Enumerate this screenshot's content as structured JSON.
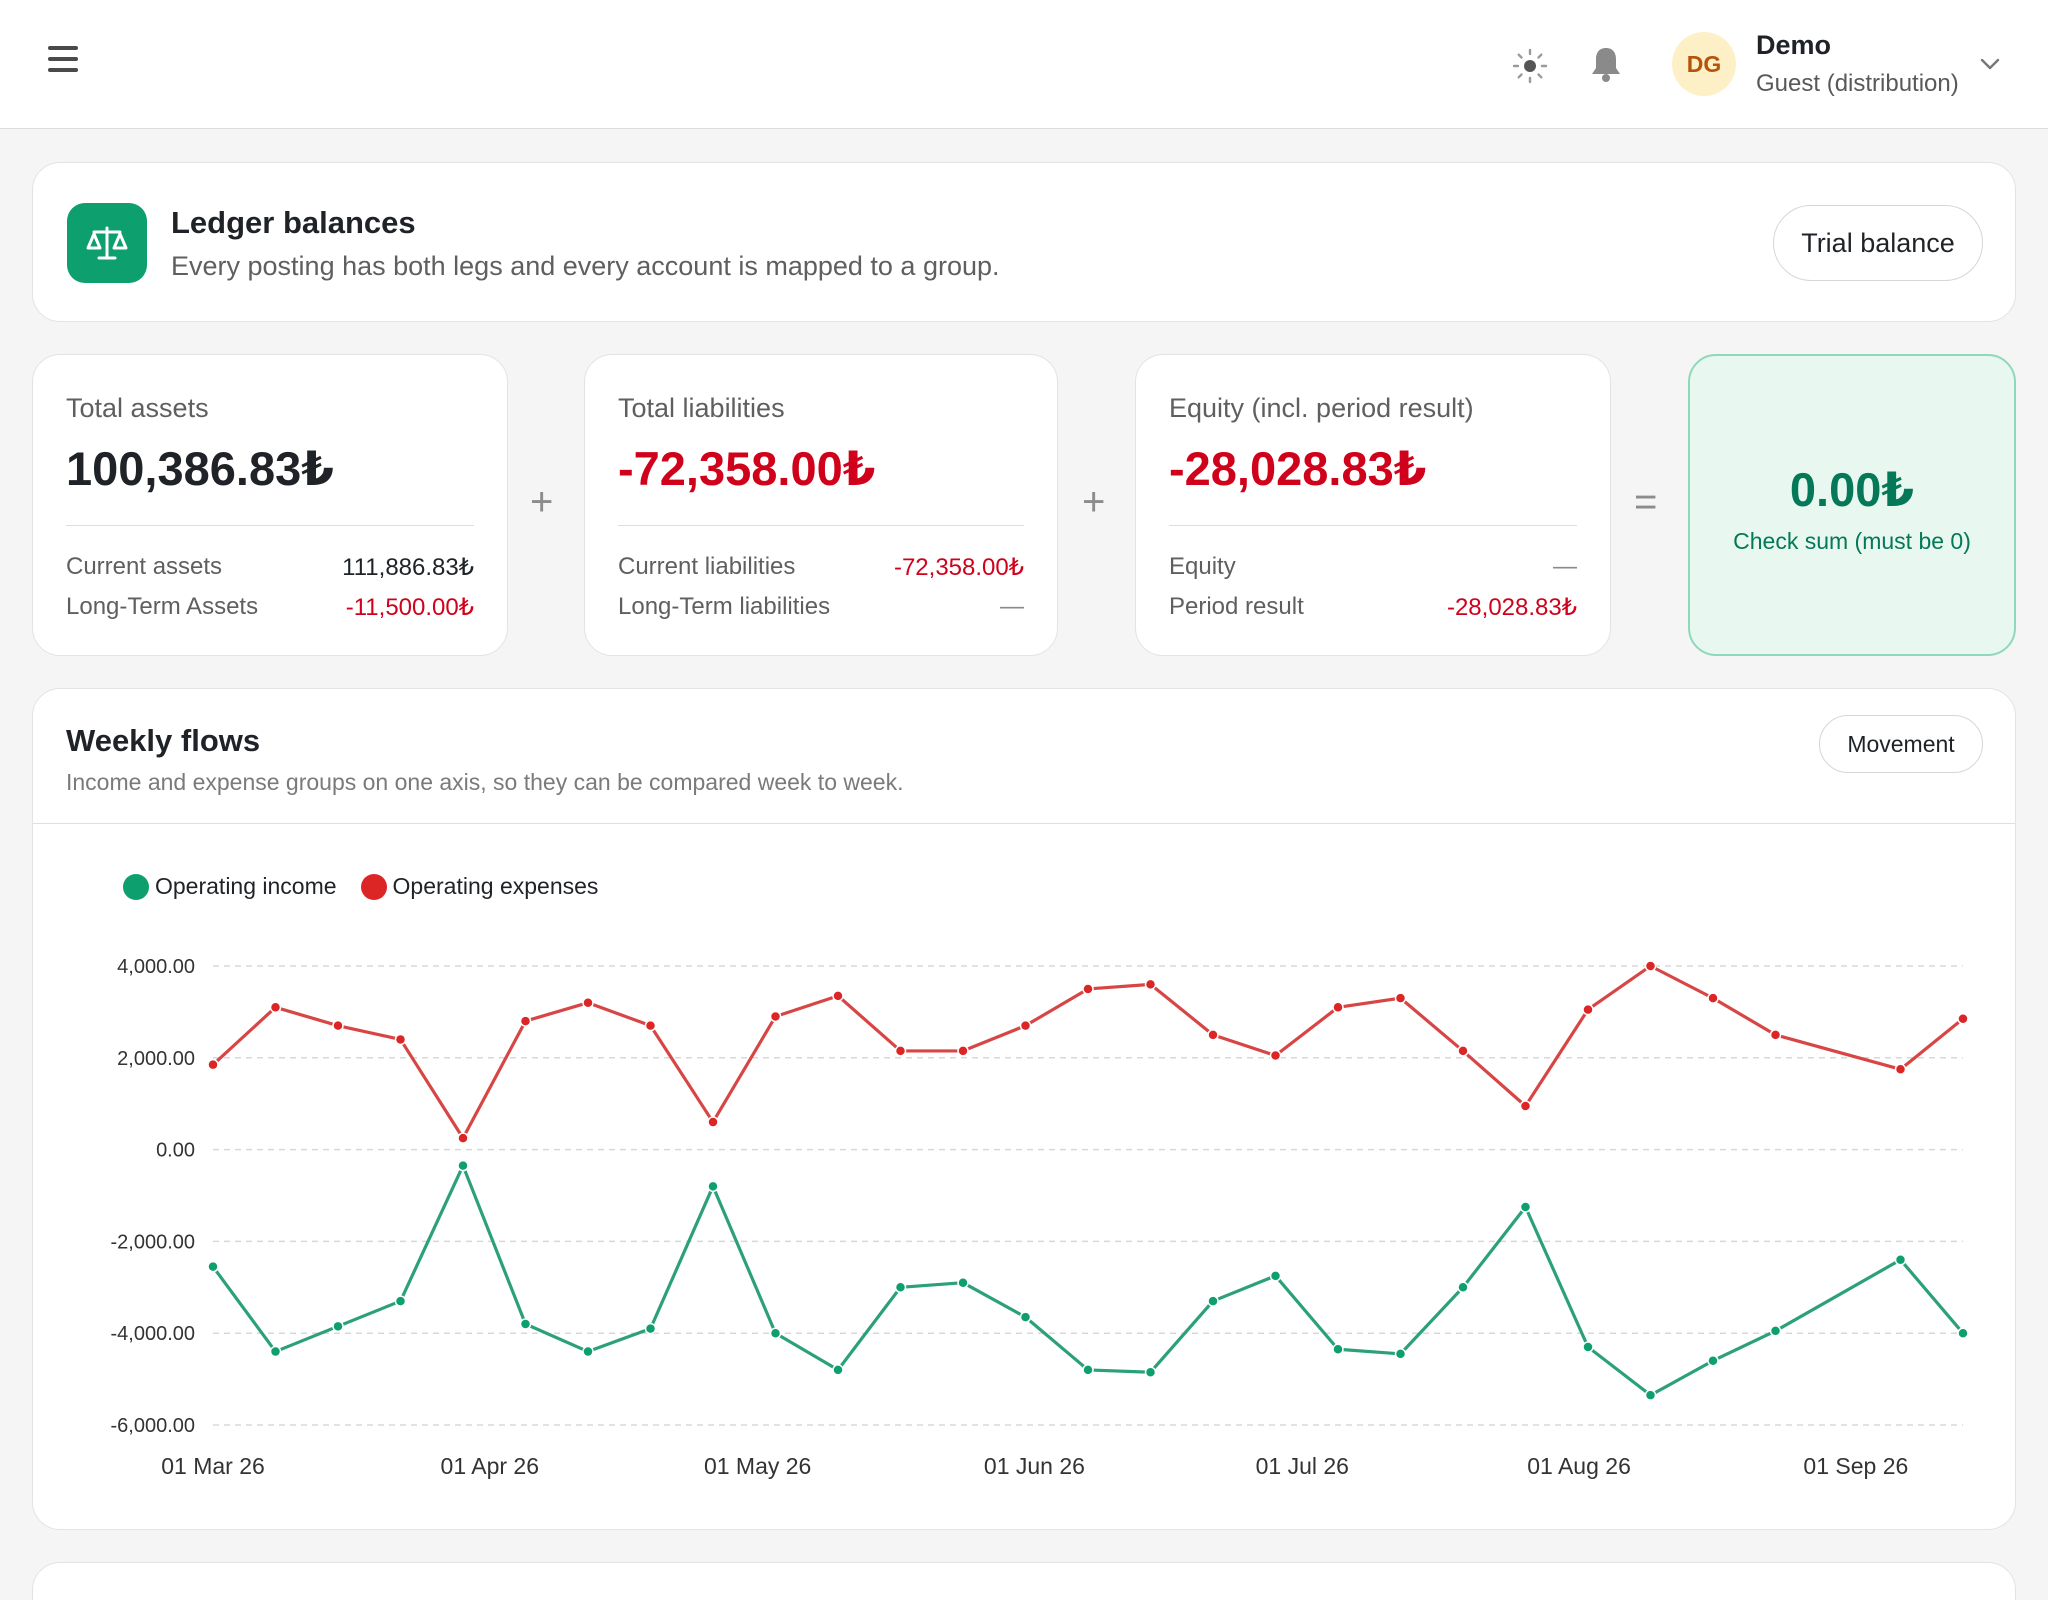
{
  "topbar": {
    "user": {
      "initials": "DG",
      "name": "Demo",
      "role": "Guest (distribution)"
    }
  },
  "header": {
    "title": "Ledger balances",
    "subtitle": "Every posting has both legs and every account is mapped to a group.",
    "trial_balance_label": "Trial balance"
  },
  "stats": {
    "assets": {
      "label": "Total assets",
      "value": "100,386.83₺",
      "rows": [
        {
          "label": "Current assets",
          "value": "111,886.83₺"
        },
        {
          "label": "Long-Term Assets",
          "value": "-11,500.00₺"
        }
      ]
    },
    "liabilities": {
      "label": "Total liabilities",
      "value": "-72,358.00₺",
      "rows": [
        {
          "label": "Current liabilities",
          "value": "-72,358.00₺"
        },
        {
          "label": "Long-Term liabilities",
          "value": "—"
        }
      ]
    },
    "equity": {
      "label": "Equity (incl. period result)",
      "value": "-28,028.83₺",
      "rows": [
        {
          "label": "Equity",
          "value": "—"
        },
        {
          "label": "Period result",
          "value": "-28,028.83₺"
        }
      ]
    },
    "operators": {
      "plus1": "+",
      "plus2": "+",
      "equals": "="
    },
    "check": {
      "value": "0.00₺",
      "label": "Check sum (must be 0)"
    }
  },
  "flows": {
    "title": "Weekly flows",
    "subtitle": "Income and expense groups on one axis, so they can be compared week to week.",
    "movement_label": "Movement"
  },
  "colors": {
    "income": "#0e9f6e",
    "expenses": "#dc2626",
    "income_line": "#2ba07a",
    "expenses_line": "#d84545"
  },
  "chart_data": {
    "type": "line",
    "x_ticks": [
      "01 Mar 26",
      "01 Apr 26",
      "01 May 26",
      "01 Jun 26",
      "01 Jul 26",
      "01 Aug 26",
      "01 Sep 26"
    ],
    "y_ticks": [
      "4,000.00",
      "2,000.00",
      "0.00",
      "-2,000.00",
      "-4,000.00",
      "-6,000.00"
    ],
    "ylim": [
      -6000,
      4000
    ],
    "x": [
      "2026-03-01",
      "2026-03-08",
      "2026-03-15",
      "2026-03-22",
      "2026-03-29",
      "2026-04-05",
      "2026-04-12",
      "2026-04-19",
      "2026-04-26",
      "2026-05-03",
      "2026-05-10",
      "2026-05-17",
      "2026-05-24",
      "2026-05-31",
      "2026-06-07",
      "2026-06-14",
      "2026-06-21",
      "2026-06-28",
      "2026-07-05",
      "2026-07-12",
      "2026-07-19",
      "2026-07-26",
      "2026-08-02",
      "2026-08-09",
      "2026-08-16",
      "2026-08-23",
      "2026-09-06",
      "2026-09-13"
    ],
    "series": [
      {
        "name": "Operating income",
        "values": [
          -2550,
          -4400,
          -3850,
          -3300,
          -350,
          -3800,
          -4400,
          -3900,
          -800,
          -4000,
          -4800,
          -3000,
          -2900,
          -3650,
          -4800,
          -4850,
          -3300,
          -2750,
          -4350,
          -4450,
          -3000,
          -1250,
          -4300,
          -5350,
          -4600,
          -3950,
          -2400,
          -4000
        ]
      },
      {
        "name": "Operating expenses",
        "values": [
          1850,
          3100,
          2700,
          2400,
          250,
          2800,
          3200,
          2700,
          600,
          2900,
          3350,
          2150,
          2150,
          2700,
          3500,
          3600,
          2500,
          2050,
          3100,
          3300,
          2150,
          950,
          3050,
          4000,
          3300,
          2500,
          1750,
          2850
        ]
      }
    ],
    "grid": true,
    "legend_position": "top-left"
  }
}
